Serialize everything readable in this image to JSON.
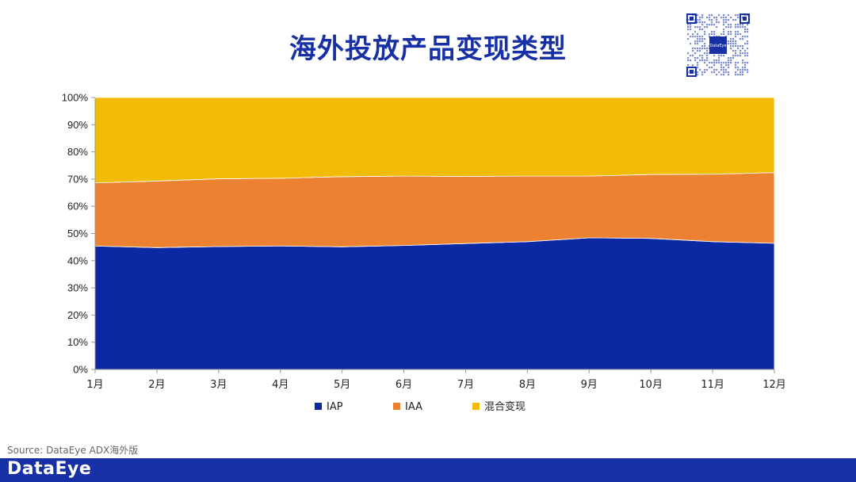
{
  "header": {
    "title": "海外投放产品变现类型"
  },
  "qr": {
    "center_label": "DataEye"
  },
  "footer": {
    "source": "Source: DataEye ADX海外版",
    "brand": "DataEye",
    "color": "#1730a6"
  },
  "chart_data": {
    "type": "area",
    "stacked": true,
    "percent": true,
    "title": "海外投放产品变现类型",
    "categories": [
      "1月",
      "2月",
      "3月",
      "4月",
      "5月",
      "6月",
      "7月",
      "8月",
      "9月",
      "10月",
      "11月",
      "12月"
    ],
    "y_ticks": [
      "0%",
      "10%",
      "20%",
      "30%",
      "40%",
      "50%",
      "60%",
      "70%",
      "80%",
      "90%",
      "100%"
    ],
    "ylim": [
      0,
      100
    ],
    "grid": false,
    "legend_position": "bottom",
    "series": [
      {
        "name": "IAP",
        "color": "#0b29a3",
        "values": [
          45.4,
          44.8,
          45.2,
          45.4,
          45.1,
          45.6,
          46.3,
          47.0,
          48.4,
          48.2,
          47.0,
          46.4
        ]
      },
      {
        "name": "IAA",
        "color": "#ed8132",
        "values": [
          23.2,
          24.5,
          24.9,
          24.9,
          25.8,
          25.5,
          24.7,
          24.1,
          22.7,
          23.5,
          24.8,
          26.0
        ]
      },
      {
        "name": "混合变现",
        "color": "#f2bb06",
        "values": [
          31.4,
          30.7,
          29.9,
          29.7,
          29.1,
          28.9,
          29.0,
          28.9,
          28.9,
          28.3,
          28.2,
          27.6
        ]
      }
    ]
  }
}
